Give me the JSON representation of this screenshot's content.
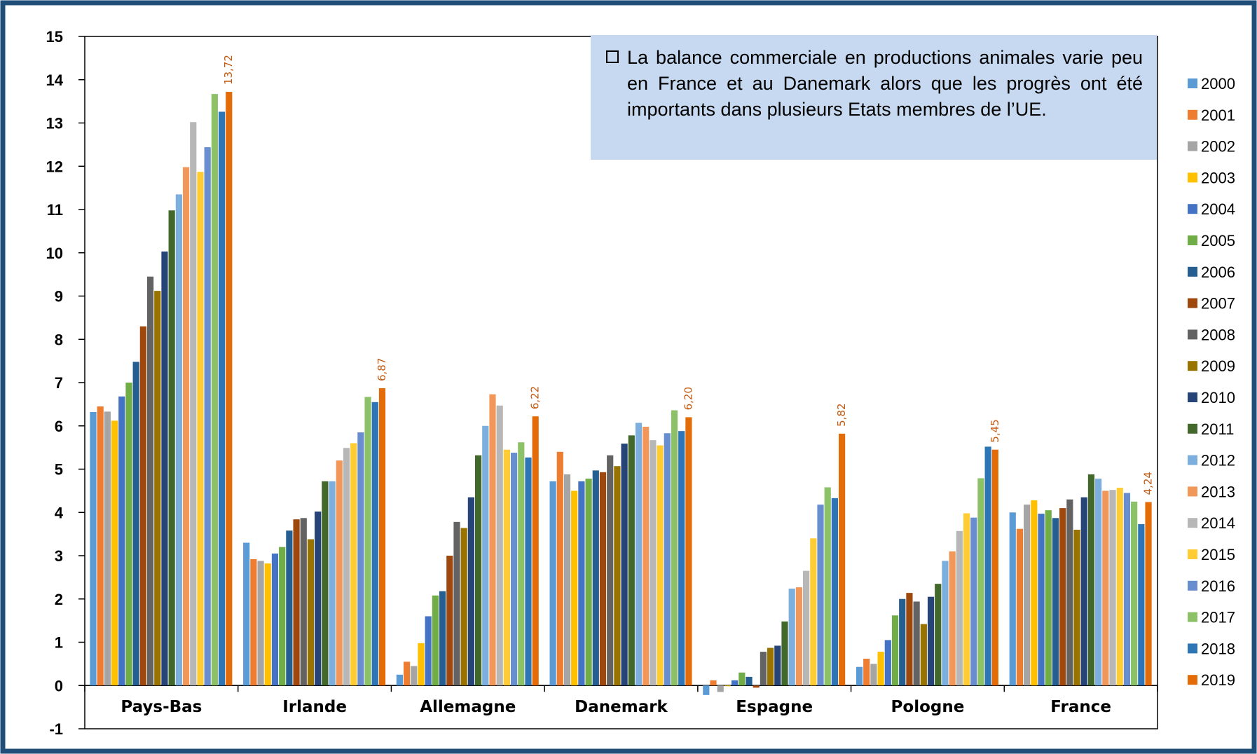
{
  "annotation_text": "La balance commerciale en productions animales varie peu en France et au Danemark alors que les progrès ont été importants dans plusieurs Etats membres de l’UE.",
  "colors": {
    "frame": "#1f4e79",
    "annotation_bg": "#c6d9f0",
    "value_label": "#c55a11"
  },
  "chart_data": {
    "type": "bar",
    "categories": [
      "Pays-Bas",
      "Irlande",
      "Allemagne",
      "Danemark",
      "Espagne",
      "Pologne",
      "France"
    ],
    "ylim": [
      -1,
      15
    ],
    "yticks": [
      "15",
      "14",
      "13",
      "12",
      "11",
      "10",
      "9",
      "8",
      "7",
      "6",
      "5",
      "4",
      "3",
      "2",
      "1",
      "0",
      "-1"
    ],
    "legend_position": "right",
    "grid": false,
    "series": [
      {
        "name": "2000",
        "color": "#5b9bd5",
        "values": [
          6.32,
          3.3,
          0.25,
          4.72,
          -0.22,
          0.43,
          4.0
        ]
      },
      {
        "name": "2001",
        "color": "#ed7d31",
        "values": [
          6.45,
          2.92,
          0.55,
          5.4,
          0.12,
          0.62,
          3.62
        ]
      },
      {
        "name": "2002",
        "color": "#a5a5a5",
        "values": [
          6.33,
          2.88,
          0.45,
          4.88,
          -0.15,
          0.5,
          4.18
        ]
      },
      {
        "name": "2003",
        "color": "#ffc000",
        "values": [
          6.12,
          2.82,
          0.98,
          4.5,
          0.0,
          0.78,
          4.28
        ]
      },
      {
        "name": "2004",
        "color": "#4472c4",
        "values": [
          6.68,
          3.05,
          1.6,
          4.72,
          0.12,
          1.05,
          3.97
        ]
      },
      {
        "name": "2005",
        "color": "#70ad47",
        "values": [
          7.0,
          3.2,
          2.08,
          4.78,
          0.3,
          1.62,
          4.05
        ]
      },
      {
        "name": "2006",
        "color": "#255e91",
        "values": [
          7.48,
          3.58,
          2.18,
          4.97,
          0.2,
          2.0,
          3.87
        ]
      },
      {
        "name": "2007",
        "color": "#9e480e",
        "values": [
          8.3,
          3.84,
          3.0,
          4.93,
          -0.05,
          2.14,
          4.1
        ]
      },
      {
        "name": "2008",
        "color": "#636363",
        "values": [
          9.45,
          3.87,
          3.78,
          5.32,
          0.78,
          1.94,
          4.3
        ]
      },
      {
        "name": "2009",
        "color": "#997300",
        "values": [
          9.12,
          3.38,
          3.64,
          5.07,
          0.87,
          1.42,
          3.6
        ]
      },
      {
        "name": "2010",
        "color": "#264478",
        "values": [
          10.03,
          4.02,
          4.35,
          5.59,
          0.92,
          2.05,
          4.35
        ]
      },
      {
        "name": "2011",
        "color": "#43682b",
        "values": [
          10.98,
          4.72,
          5.32,
          5.78,
          1.48,
          2.35,
          4.88
        ]
      },
      {
        "name": "2012",
        "color": "#7cafdd",
        "values": [
          11.35,
          4.72,
          6.0,
          6.07,
          2.24,
          2.88,
          4.78
        ]
      },
      {
        "name": "2013",
        "color": "#f1975a",
        "values": [
          11.98,
          5.2,
          6.73,
          5.98,
          2.27,
          3.1,
          4.5
        ]
      },
      {
        "name": "2014",
        "color": "#b7b7b7",
        "values": [
          13.02,
          5.49,
          6.47,
          5.67,
          2.65,
          3.57,
          4.52
        ]
      },
      {
        "name": "2015",
        "color": "#ffcd33",
        "values": [
          11.87,
          5.6,
          5.45,
          5.55,
          3.4,
          3.98,
          4.57
        ]
      },
      {
        "name": "2016",
        "color": "#698ed0",
        "values": [
          12.44,
          5.85,
          5.38,
          5.83,
          4.18,
          3.88,
          4.45
        ]
      },
      {
        "name": "2017",
        "color": "#8cc168",
        "values": [
          13.67,
          6.67,
          5.62,
          6.36,
          4.58,
          4.79,
          4.25
        ]
      },
      {
        "name": "2018",
        "color": "#2e75b6",
        "values": [
          13.26,
          6.55,
          5.27,
          5.88,
          4.33,
          5.52,
          3.73
        ]
      },
      {
        "name": "2019",
        "color": "#e36c09",
        "values": [
          13.72,
          6.87,
          6.22,
          6.2,
          5.82,
          5.45,
          4.24
        ]
      }
    ],
    "value_labels": [
      "13,72",
      "6,87",
      "6,22",
      "6,20",
      "5,82",
      "5,45",
      "4,24"
    ]
  }
}
